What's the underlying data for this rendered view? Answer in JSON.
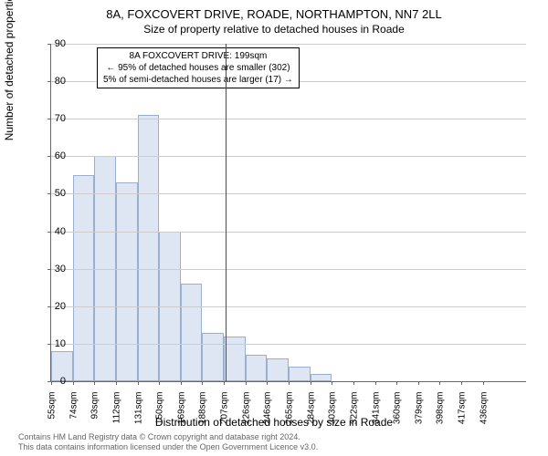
{
  "chart": {
    "type": "histogram",
    "title_main": "8A, FOXCOVERT DRIVE, ROADE, NORTHAMPTON, NN7 2LL",
    "title_sub": "Size of property relative to detached houses in Roade",
    "y_axis_label": "Number of detached properties",
    "x_axis_label": "Distribution of detached houses by size in Roade",
    "ylim": [
      0,
      90
    ],
    "ytick_step": 10,
    "y_ticks": [
      0,
      10,
      20,
      30,
      40,
      50,
      60,
      70,
      80,
      90
    ],
    "x_labels": [
      "55sqm",
      "74sqm",
      "93sqm",
      "112sqm",
      "131sqm",
      "150sqm",
      "169sqm",
      "188sqm",
      "207sqm",
      "226sqm",
      "246sqm",
      "265sqm",
      "284sqm",
      "303sqm",
      "322sqm",
      "341sqm",
      "360sqm",
      "379sqm",
      "398sqm",
      "417sqm",
      "436sqm"
    ],
    "values": [
      8,
      55,
      60,
      53,
      71,
      40,
      26,
      13,
      12,
      7,
      6,
      4,
      2,
      0,
      0,
      0,
      0,
      0,
      0,
      0,
      0,
      0
    ],
    "bar_fill": "#dde6f2",
    "bar_border": "#9aaed0",
    "grid_color": "#cccccc",
    "background_color": "#ffffff",
    "reference_line": {
      "position_index": 8.1,
      "color": "#ff0000"
    },
    "annotation": {
      "line1": "8A FOXCOVERT DRIVE: 199sqm",
      "line2": "← 95% of detached houses are smaller (302)",
      "line3": "5% of semi-detached houses are larger (17) →"
    },
    "footer_line1": "Contains HM Land Registry data © Crown copyright and database right 2024.",
    "footer_line2": "This data contains information licensed under the Open Government Licence v3.0."
  }
}
